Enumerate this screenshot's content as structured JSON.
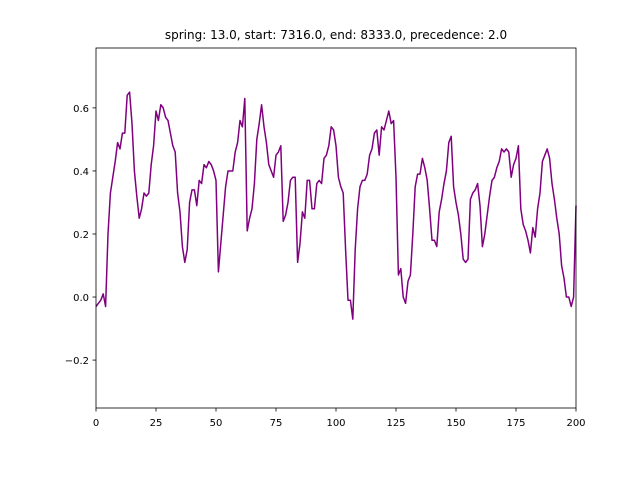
{
  "chart_data": {
    "type": "line",
    "title": "spring: 13.0, start: 7316.0, end: 8333.0, precedence: 2.0",
    "x": [
      0,
      1,
      2,
      3,
      4,
      5,
      6,
      7,
      8,
      9,
      10,
      11,
      12,
      13,
      14,
      15,
      16,
      17,
      18,
      19,
      20,
      21,
      22,
      23,
      24,
      25,
      26,
      27,
      28,
      29,
      30,
      31,
      32,
      33,
      34,
      35,
      36,
      37,
      38,
      39,
      40,
      41,
      42,
      43,
      44,
      45,
      46,
      47,
      48,
      49,
      50,
      51,
      52,
      53,
      54,
      55,
      56,
      57,
      58,
      59,
      60,
      61,
      62,
      63,
      64,
      65,
      66,
      67,
      68,
      69,
      70,
      71,
      72,
      73,
      74,
      75,
      76,
      77,
      78,
      79,
      80,
      81,
      82,
      83,
      84,
      85,
      86,
      87,
      88,
      89,
      90,
      91,
      92,
      93,
      94,
      95,
      96,
      97,
      98,
      99,
      100,
      101,
      102,
      103,
      104,
      105,
      106,
      107,
      108,
      109,
      110,
      111,
      112,
      113,
      114,
      115,
      116,
      117,
      118,
      119,
      120,
      121,
      122,
      123,
      124,
      125,
      126,
      127,
      128,
      129,
      130,
      131,
      132,
      133,
      134,
      135,
      136,
      137,
      138,
      139,
      140,
      141,
      142,
      143,
      144,
      145,
      146,
      147,
      148,
      149,
      150,
      151,
      152,
      153,
      154,
      155,
      156,
      157,
      158,
      159,
      160,
      161,
      162,
      163,
      164,
      165,
      166,
      167,
      168,
      169,
      170,
      171,
      172,
      173,
      174,
      175,
      176,
      177,
      178,
      179,
      180,
      181,
      182,
      183,
      184,
      185,
      186,
      187,
      188,
      189,
      190,
      191,
      192,
      193,
      194,
      195,
      196,
      197,
      198,
      199,
      200
    ],
    "series": [
      {
        "color": "#800080",
        "values": [
          -0.03,
          -0.02,
          -0.01,
          0.01,
          -0.03,
          0.2,
          0.33,
          0.38,
          0.43,
          0.49,
          0.47,
          0.52,
          0.52,
          0.64,
          0.65,
          0.55,
          0.4,
          0.32,
          0.25,
          0.28,
          0.33,
          0.32,
          0.33,
          0.42,
          0.48,
          0.59,
          0.56,
          0.61,
          0.6,
          0.57,
          0.56,
          0.52,
          0.48,
          0.46,
          0.33,
          0.27,
          0.16,
          0.11,
          0.15,
          0.3,
          0.34,
          0.34,
          0.29,
          0.37,
          0.36,
          0.42,
          0.41,
          0.43,
          0.42,
          0.4,
          0.37,
          0.08,
          0.17,
          0.26,
          0.35,
          0.4,
          0.4,
          0.4,
          0.46,
          0.49,
          0.56,
          0.54,
          0.63,
          0.21,
          0.25,
          0.28,
          0.36,
          0.5,
          0.55,
          0.61,
          0.54,
          0.49,
          0.42,
          0.4,
          0.38,
          0.45,
          0.46,
          0.48,
          0.24,
          0.26,
          0.3,
          0.37,
          0.38,
          0.38,
          0.11,
          0.17,
          0.27,
          0.25,
          0.37,
          0.37,
          0.28,
          0.28,
          0.36,
          0.37,
          0.36,
          0.44,
          0.45,
          0.48,
          0.54,
          0.53,
          0.48,
          0.38,
          0.35,
          0.33,
          0.15,
          -0.01,
          -0.01,
          -0.07,
          0.15,
          0.28,
          0.35,
          0.37,
          0.37,
          0.39,
          0.45,
          0.47,
          0.52,
          0.53,
          0.45,
          0.54,
          0.53,
          0.56,
          0.59,
          0.55,
          0.56,
          0.38,
          0.07,
          0.09,
          0.0,
          -0.02,
          0.05,
          0.07,
          0.2,
          0.35,
          0.39,
          0.39,
          0.44,
          0.41,
          0.37,
          0.28,
          0.18,
          0.18,
          0.16,
          0.27,
          0.31,
          0.36,
          0.4,
          0.49,
          0.51,
          0.35,
          0.3,
          0.26,
          0.2,
          0.12,
          0.11,
          0.12,
          0.31,
          0.33,
          0.34,
          0.36,
          0.29,
          0.16,
          0.2,
          0.26,
          0.32,
          0.37,
          0.38,
          0.41,
          0.43,
          0.47,
          0.46,
          0.47,
          0.46,
          0.38,
          0.42,
          0.44,
          0.48,
          0.28,
          0.23,
          0.21,
          0.18,
          0.14,
          0.22,
          0.19,
          0.28,
          0.33,
          0.43,
          0.45,
          0.47,
          0.44,
          0.36,
          0.31,
          0.25,
          0.2,
          0.1,
          0.06,
          0.0,
          0.0,
          -0.03,
          0.0,
          0.29
        ]
      }
    ],
    "xlim": [
      0,
      200
    ],
    "xticks": [
      0,
      25,
      50,
      75,
      100,
      125,
      150,
      175,
      200
    ],
    "ylim": [
      -0.352,
      0.79
    ],
    "yticks": [
      {
        "value": -0.2,
        "label": "−0.2"
      },
      {
        "value": 0.0,
        "label": "0.0"
      },
      {
        "value": 0.2,
        "label": "0.2"
      },
      {
        "value": 0.4,
        "label": "0.4"
      },
      {
        "value": 0.6,
        "label": "0.6"
      }
    ]
  }
}
